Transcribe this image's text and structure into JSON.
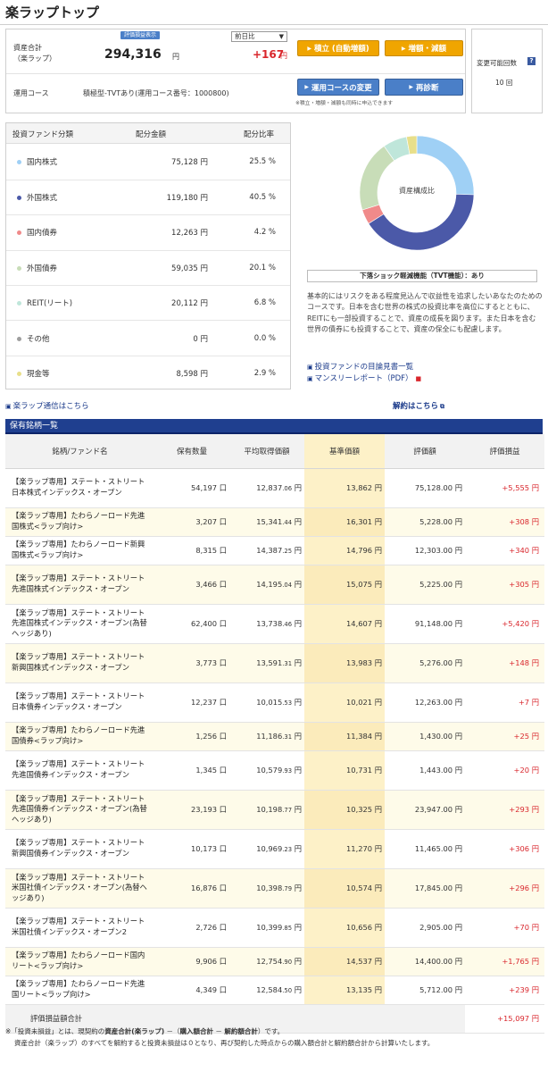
{
  "page": {
    "title": "楽ラップトップ"
  },
  "summary": {
    "asset_label_1": "資産合計",
    "asset_label_2": "（楽ラップ）",
    "eval_badge": "評価損益表示",
    "period_select": "前日比",
    "asset_value": "294,316",
    "asset_unit": "円",
    "diff_value": "+167",
    "diff_unit": "円",
    "btn_tsumitate": "積立 (自動増額)",
    "btn_zougaku": "増額・減額",
    "change_count_label": "変更可能回数",
    "change_count_value": "10 回",
    "course_label": "運用コース",
    "course_value": "積極型‐TVTあり(運用コース番号：1000800)",
    "btn_course_change": "運用コースの変更",
    "btn_rediagnose": "再診断",
    "note": "※積立・増額・減額も同時に申込できます"
  },
  "allocation": {
    "headers": [
      "投資ファンド分類",
      "配分金額",
      "配分比率"
    ],
    "rows": [
      {
        "name": "国内株式",
        "amount": "75,128 円",
        "ratio": "25.5 %",
        "color": "#9fd0f5",
        "value": 25.5
      },
      {
        "name": "外国株式",
        "amount": "119,180 円",
        "ratio": "40.5 %",
        "color": "#4b59a8",
        "value": 40.5
      },
      {
        "name": "国内債券",
        "amount": "12,263 円",
        "ratio": "4.2 %",
        "color": "#f08a8a",
        "value": 4.2
      },
      {
        "name": "外国債券",
        "amount": "59,035 円",
        "ratio": "20.1 %",
        "color": "#c8ddb8",
        "value": 20.1
      },
      {
        "name": "REIT(リート)",
        "amount": "20,112 円",
        "ratio": "6.8 %",
        "color": "#bfe6da",
        "value": 6.8
      },
      {
        "name": "その他",
        "amount": "0 円",
        "ratio": "0.0 %",
        "color": "#9e9e9e",
        "value": 0.0
      },
      {
        "name": "現金等",
        "amount": "8,598 円",
        "ratio": "2.9 %",
        "color": "#e8df8a",
        "value": 2.9
      }
    ]
  },
  "donut": {
    "center_label": "資産構成比"
  },
  "tvt": {
    "label": "下落ショック軽減機能（TVT機能）：あり"
  },
  "description": "基本的にはリスクをある程度見込んで収益性を追求したいあなたのためのコースです。日本を含む世界の株式の投資比率を高位にするとともに、REITにも一部投資することで、資産の成長を図ります。また日本を含む世界の債券にも投資することで、資産の保全にも配慮します。",
  "links": {
    "prospectus": "投資ファンドの目論見書一覧",
    "monthly_report": "マンスリーレポート（PDF）",
    "wrap_news": "楽ラップ通信はこちら",
    "cancel": "解約はこちら"
  },
  "holdings": {
    "section_title": "保有銘柄一覧",
    "headers": [
      "銘柄/ファンド名",
      "保有数量",
      "平均取得価額",
      "基準価額",
      "評価額",
      "評価損益"
    ],
    "rows": [
      {
        "name": "【楽ラップ専用】ステート・ストリート日本株式インデックス・オープン",
        "qty": "54,197 口",
        "avg_main": "12,837",
        "avg_dec": ".06",
        "avg_unit": "円",
        "base": "13,862 円",
        "eval": "75,128.00 円",
        "pl": "+5,555 円"
      },
      {
        "name": "【楽ラップ専用】たわらノーロード先進国株式<ラップ向け>",
        "qty": "3,207 口",
        "avg_main": "15,341",
        "avg_dec": ".44",
        "avg_unit": "円",
        "base": "16,301 円",
        "eval": "5,228.00 円",
        "pl": "+308 円"
      },
      {
        "name": "【楽ラップ専用】たわらノーロード新興国株式<ラップ向け>",
        "qty": "8,315 口",
        "avg_main": "14,387",
        "avg_dec": ".25",
        "avg_unit": "円",
        "base": "14,796 円",
        "eval": "12,303.00 円",
        "pl": "+340 円"
      },
      {
        "name": "【楽ラップ専用】ステート・ストリート先進国株式インデックス・オープン",
        "qty": "3,466 口",
        "avg_main": "14,195",
        "avg_dec": ".04",
        "avg_unit": "円",
        "base": "15,075 円",
        "eval": "5,225.00 円",
        "pl": "+305 円"
      },
      {
        "name": "【楽ラップ専用】ステート・ストリート先進国株式インデックス・オープン(為替ヘッジあり)",
        "qty": "62,400 口",
        "avg_main": "13,738",
        "avg_dec": ".46",
        "avg_unit": "円",
        "base": "14,607 円",
        "eval": "91,148.00 円",
        "pl": "+5,420 円"
      },
      {
        "name": "【楽ラップ専用】ステート・ストリート新興国株式インデックス・オープン",
        "qty": "3,773 口",
        "avg_main": "13,591",
        "avg_dec": ".31",
        "avg_unit": "円",
        "base": "13,983 円",
        "eval": "5,276.00 円",
        "pl": "+148 円"
      },
      {
        "name": "【楽ラップ専用】ステート・ストリート日本債券インデックス・オープン",
        "qty": "12,237 口",
        "avg_main": "10,015",
        "avg_dec": ".53",
        "avg_unit": "円",
        "base": "10,021 円",
        "eval": "12,263.00 円",
        "pl": "+7 円"
      },
      {
        "name": "【楽ラップ専用】たわらノーロード先進国債券<ラップ向け>",
        "qty": "1,256 口",
        "avg_main": "11,186",
        "avg_dec": ".31",
        "avg_unit": "円",
        "base": "11,384 円",
        "eval": "1,430.00 円",
        "pl": "+25 円"
      },
      {
        "name": "【楽ラップ専用】ステート・ストリート先進国債券インデックス・オープン",
        "qty": "1,345 口",
        "avg_main": "10,579",
        "avg_dec": ".93",
        "avg_unit": "円",
        "base": "10,731 円",
        "eval": "1,443.00 円",
        "pl": "+20 円"
      },
      {
        "name": "【楽ラップ専用】ステート・ストリート先進国債券インデックス・オープン(為替ヘッジあり)",
        "qty": "23,193 口",
        "avg_main": "10,198",
        "avg_dec": ".77",
        "avg_unit": "円",
        "base": "10,325 円",
        "eval": "23,947.00 円",
        "pl": "+293 円"
      },
      {
        "name": "【楽ラップ専用】ステート・ストリート新興国債券インデックス・オープン",
        "qty": "10,173 口",
        "avg_main": "10,969",
        "avg_dec": ".23",
        "avg_unit": "円",
        "base": "11,270 円",
        "eval": "11,465.00 円",
        "pl": "+306 円"
      },
      {
        "name": "【楽ラップ専用】ステート・ストリート米国社債インデックス・オープン(為替ヘッジあり)",
        "qty": "16,876 口",
        "avg_main": "10,398",
        "avg_dec": ".79",
        "avg_unit": "円",
        "base": "10,574 円",
        "eval": "17,845.00 円",
        "pl": "+296 円"
      },
      {
        "name": "【楽ラップ専用】ステート・ストリート米国社債インデックス・オープン2",
        "qty": "2,726 口",
        "avg_main": "10,399",
        "avg_dec": ".85",
        "avg_unit": "円",
        "base": "10,656 円",
        "eval": "2,905.00 円",
        "pl": "+70 円"
      },
      {
        "name": "【楽ラップ専用】たわらノーロード国内リート<ラップ向け>",
        "qty": "9,906 口",
        "avg_main": "12,754",
        "avg_dec": ".90",
        "avg_unit": "円",
        "base": "14,537 円",
        "eval": "14,400.00 円",
        "pl": "+1,765 円"
      },
      {
        "name": "【楽ラップ専用】たわらノーロード先進国リート<ラップ向け>",
        "qty": "4,349 口",
        "avg_main": "12,584",
        "avg_dec": ".50",
        "avg_unit": "円",
        "base": "13,135 円",
        "eval": "5,712.00 円",
        "pl": "+239 円"
      }
    ],
    "total_label": "評価損益額合計",
    "total_value": "+15,097 円"
  },
  "footnote": {
    "line1_a": "※「投資未損益」とは、現契約の",
    "line1_b": "資産合計(楽ラップ)",
    "line1_c": " －（",
    "line1_d": "購入額合計",
    "line1_e": " － ",
    "line1_f": "解約額合計",
    "line1_g": "）です。",
    "line2": "資産合計（楽ラップ）のすべてを解約すると投資未損益は０となり、再び契約した時点からの購入額合計と解約額合計から計算いたします。"
  }
}
